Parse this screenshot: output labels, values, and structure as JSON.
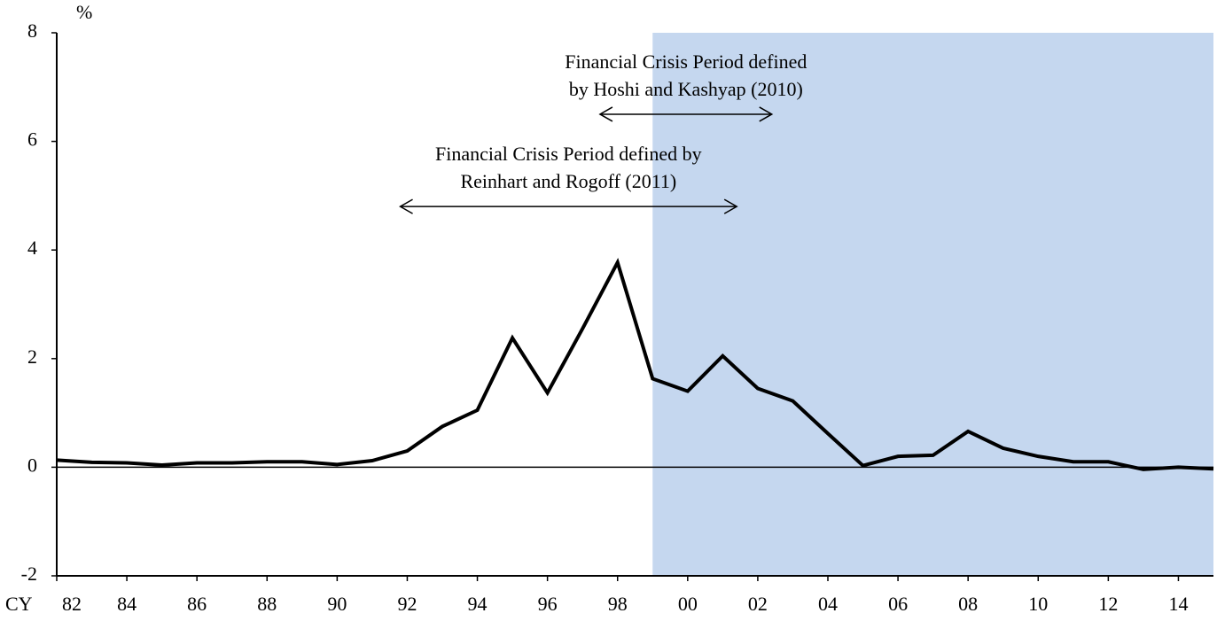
{
  "chart_data": {
    "type": "line",
    "y_label": "%",
    "x_label": "CY",
    "x": [
      1982,
      1983,
      1984,
      1985,
      1986,
      1987,
      1988,
      1989,
      1990,
      1991,
      1992,
      1993,
      1994,
      1995,
      1996,
      1997,
      1998,
      1999,
      2000,
      2001,
      2002,
      2003,
      2004,
      2005,
      2006,
      2007,
      2008,
      2009,
      2010,
      2011,
      2012,
      2013,
      2014,
      2015
    ],
    "values": [
      0.13,
      0.09,
      0.08,
      0.04,
      0.08,
      0.08,
      0.1,
      0.1,
      0.05,
      0.12,
      0.3,
      0.75,
      1.05,
      2.38,
      1.37,
      2.55,
      3.77,
      1.63,
      1.4,
      2.05,
      1.45,
      1.22,
      0.62,
      0.03,
      0.2,
      0.22,
      0.66,
      0.35,
      0.2,
      0.1,
      0.1,
      -0.04,
      0.0,
      -0.03
    ],
    "color": "#000000",
    "shade": [
      1999,
      2015
    ],
    "shade_color": "#c5d7ef",
    "xlim": [
      1982,
      2015
    ],
    "xticks": [
      {
        "value": 1982,
        "label": "82"
      },
      {
        "value": 1984,
        "label": "84"
      },
      {
        "value": 1986,
        "label": "86"
      },
      {
        "value": 1988,
        "label": "88"
      },
      {
        "value": 1990,
        "label": "90"
      },
      {
        "value": 1992,
        "label": "92"
      },
      {
        "value": 1994,
        "label": "94"
      },
      {
        "value": 1996,
        "label": "96"
      },
      {
        "value": 1998,
        "label": "98"
      },
      {
        "value": 2000,
        "label": "00"
      },
      {
        "value": 2002,
        "label": "02"
      },
      {
        "value": 2004,
        "label": "04"
      },
      {
        "value": 2006,
        "label": "06"
      },
      {
        "value": 2008,
        "label": "08"
      },
      {
        "value": 2010,
        "label": "10"
      },
      {
        "value": 2012,
        "label": "12"
      },
      {
        "value": 2014,
        "label": "14"
      }
    ],
    "ylim": [
      -2,
      8
    ],
    "yticks": [
      -2,
      0,
      2,
      4,
      6,
      8
    ],
    "annotations": [
      {
        "lines": [
          "Financial Crisis Period defined",
          "by Hoshi and Kashyap (2010)"
        ],
        "from": 1997.5,
        "to": 2002.4,
        "y": 6.5
      },
      {
        "lines": [
          "Financial Crisis Period defined by",
          "Reinhart and Rogoff (2011)"
        ],
        "from": 1991.8,
        "to": 2001.4,
        "y": 4.8
      }
    ]
  }
}
